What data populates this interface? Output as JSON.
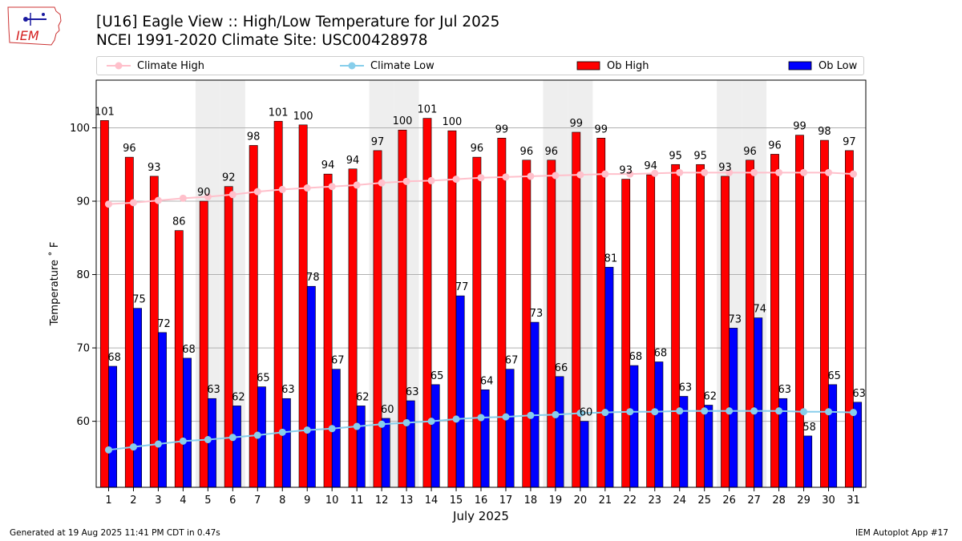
{
  "logo": {
    "text": "IEM"
  },
  "header": {
    "title": "[U16] Eagle View :: High/Low Temperature for Jul 2025",
    "subtitle": "NCEI 1991-2020 Climate Site: USC00428978"
  },
  "footer": {
    "generated": "Generated at 19 Aug 2025 11:41 PM CDT in 0.47s",
    "app": "IEM Autoplot App #17"
  },
  "chart_data": {
    "type": "bar",
    "xlabel": "July 2025",
    "ylabel": "Temperature ˚ F",
    "ylim": [
      51,
      106.5
    ],
    "yticks": [
      60,
      70,
      80,
      90,
      100
    ],
    "grid": true,
    "legend_position": "top",
    "weekend_shading": [
      5,
      6,
      12,
      13,
      19,
      20,
      26,
      27
    ],
    "categories": [
      "1",
      "2",
      "3",
      "4",
      "5",
      "6",
      "7",
      "8",
      "9",
      "10",
      "11",
      "12",
      "13",
      "14",
      "15",
      "16",
      "17",
      "18",
      "19",
      "20",
      "21",
      "22",
      "23",
      "24",
      "25",
      "26",
      "27",
      "28",
      "29",
      "30",
      "31"
    ],
    "series": [
      {
        "name": "Ob High",
        "kind": "bar",
        "color": "#ff0000",
        "values": [
          101,
          96,
          93,
          86,
          90,
          92,
          98,
          101,
          100,
          94,
          94,
          97,
          100,
          101,
          100,
          96,
          99,
          96,
          96,
          99,
          99,
          93,
          94,
          95,
          95,
          93,
          96,
          96,
          99,
          98,
          97
        ],
        "bar_heights": [
          101.0,
          96.0,
          93.4,
          86.0,
          90.0,
          92.0,
          97.6,
          100.9,
          100.4,
          93.7,
          94.4,
          96.9,
          99.7,
          101.3,
          99.6,
          96.0,
          98.6,
          95.6,
          95.6,
          99.4,
          98.6,
          93.0,
          93.6,
          95.0,
          95.0,
          93.4,
          95.6,
          96.4,
          99.0,
          98.3,
          96.9
        ]
      },
      {
        "name": "Ob Low",
        "kind": "bar",
        "color": "#0000ff",
        "values": [
          68,
          75,
          72,
          68,
          63,
          62,
          65,
          63,
          78,
          67,
          62,
          60,
          63,
          65,
          77,
          64,
          67,
          73,
          66,
          60,
          81,
          68,
          68,
          63,
          62,
          73,
          74,
          63,
          58,
          65,
          63
        ],
        "bar_heights": [
          67.5,
          75.4,
          72.1,
          68.6,
          63.1,
          62.1,
          64.7,
          63.1,
          78.4,
          67.1,
          62.1,
          60.4,
          62.8,
          65.0,
          77.1,
          64.3,
          67.1,
          73.5,
          66.1,
          60.0,
          81.0,
          67.6,
          68.1,
          63.4,
          62.2,
          72.7,
          74.1,
          63.1,
          58.0,
          65.0,
          62.6
        ]
      },
      {
        "name": "Climate High",
        "kind": "line",
        "color": "#ffc0cb",
        "values": [
          89.6,
          89.8,
          90.1,
          90.4,
          90.6,
          90.9,
          91.3,
          91.6,
          91.8,
          92.0,
          92.2,
          92.5,
          92.7,
          92.8,
          93.0,
          93.2,
          93.3,
          93.4,
          93.5,
          93.6,
          93.7,
          93.7,
          93.8,
          93.9,
          93.9,
          93.9,
          93.9,
          93.9,
          93.9,
          93.9,
          93.7
        ]
      },
      {
        "name": "Climate Low",
        "kind": "line",
        "color": "#87ceeb",
        "values": [
          56.1,
          56.5,
          56.9,
          57.3,
          57.5,
          57.8,
          58.1,
          58.5,
          58.8,
          59.0,
          59.3,
          59.6,
          59.8,
          60.0,
          60.3,
          60.5,
          60.6,
          60.8,
          60.9,
          61.1,
          61.2,
          61.3,
          61.3,
          61.4,
          61.4,
          61.4,
          61.4,
          61.4,
          61.3,
          61.3,
          61.2
        ]
      }
    ],
    "legend_labels": [
      "Climate High",
      "Climate Low",
      "Ob High",
      "Ob Low"
    ]
  }
}
